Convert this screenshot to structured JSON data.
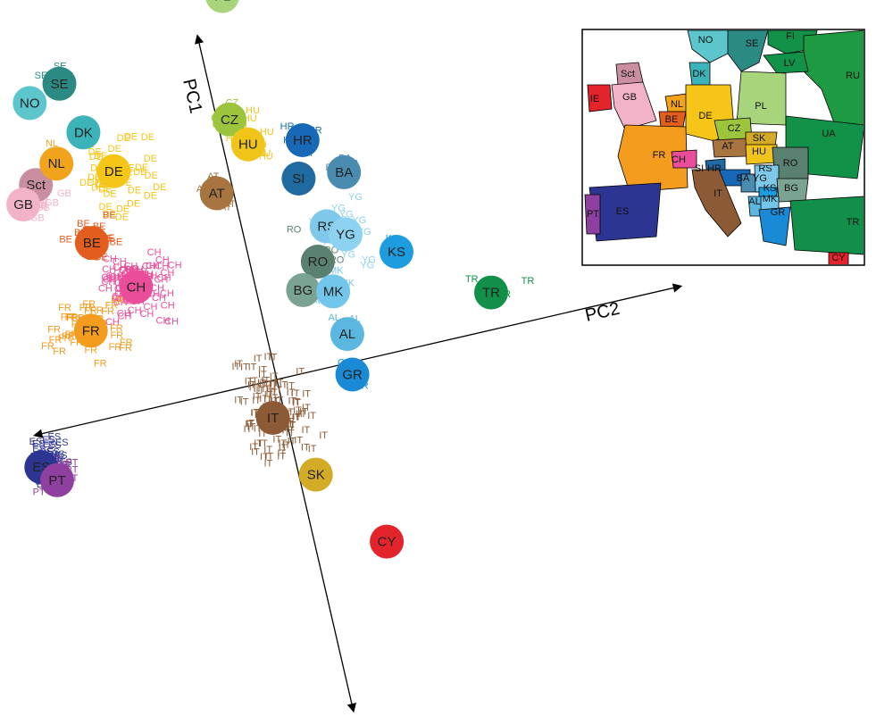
{
  "chart_data": {
    "type": "scatter",
    "axes": {
      "pc1_label": "PC1",
      "pc2_label": "PC2"
    },
    "population_centers": [
      {
        "code": "IE",
        "pc2": -0.62,
        "pc1": 0.62,
        "color": "#e3242b"
      },
      {
        "code": "Sct",
        "pc2": -0.46,
        "pc1": 0.6,
        "color": "#c98ea0"
      },
      {
        "code": "GB",
        "pc2": -0.5,
        "pc1": 0.56,
        "color": "#f2b3c8"
      },
      {
        "code": "NL",
        "pc2": -0.4,
        "pc1": 0.64,
        "color": "#f2a31c"
      },
      {
        "code": "NO",
        "pc2": -0.43,
        "pc1": 0.8,
        "color": "#5cc6cc"
      },
      {
        "code": "SE",
        "pc2": -0.35,
        "pc1": 0.83,
        "color": "#2b8a84"
      },
      {
        "code": "DK",
        "pc2": -0.32,
        "pc1": 0.7,
        "color": "#3bb3b8"
      },
      {
        "code": "DE",
        "pc2": -0.27,
        "pc1": 0.59,
        "color": "#f5c518"
      },
      {
        "code": "BE",
        "pc2": -0.36,
        "pc1": 0.43,
        "color": "#e35e1e"
      },
      {
        "code": "CH",
        "pc2": -0.28,
        "pc1": 0.3,
        "color": "#ea4d9a"
      },
      {
        "code": "FR",
        "pc2": -0.41,
        "pc1": 0.22,
        "color": "#f39c1e"
      },
      {
        "code": "AT",
        "pc2": -0.04,
        "pc1": 0.48,
        "color": "#a8743f"
      },
      {
        "code": "CZ",
        "pc2": 0.03,
        "pc1": 0.65,
        "color": "#9cc43c"
      },
      {
        "code": "HU",
        "pc2": 0.06,
        "pc1": 0.58,
        "color": "#f0c419"
      },
      {
        "code": "PL",
        "pc2": 0.08,
        "pc1": 0.95,
        "color": "#a8d47c"
      },
      {
        "code": "RU",
        "pc2": 0.14,
        "pc1": 0.98,
        "color": "#1e9a43"
      },
      {
        "code": "FI",
        "pc2": -0.11,
        "pc1": 1.04,
        "color": "#129148"
      },
      {
        "code": "LV",
        "pc2": 0.18,
        "pc1": 1.23,
        "color": "#129148"
      },
      {
        "code": "UA",
        "pc2": 0.32,
        "pc1": 0.96,
        "color": "#129148"
      },
      {
        "code": "HR",
        "pc2": 0.19,
        "pc1": 0.56,
        "color": "#1769b8"
      },
      {
        "code": "SI",
        "pc2": 0.16,
        "pc1": 0.47,
        "color": "#1f6aa0"
      },
      {
        "code": "BA",
        "pc2": 0.27,
        "pc1": 0.46,
        "color": "#4a8bb0"
      },
      {
        "code": "RS",
        "pc2": 0.2,
        "pc1": 0.34,
        "color": "#7ec8ea"
      },
      {
        "code": "YG",
        "pc2": 0.24,
        "pc1": 0.31,
        "color": "#8dd2f0"
      },
      {
        "code": "RO",
        "pc2": 0.16,
        "pc1": 0.26,
        "color": "#5a8070"
      },
      {
        "code": "BG",
        "pc2": 0.11,
        "pc1": 0.2,
        "color": "#7aa392"
      },
      {
        "code": "MK",
        "pc2": 0.18,
        "pc1": 0.18,
        "color": "#72c5eb"
      },
      {
        "code": "KS",
        "pc2": 0.35,
        "pc1": 0.24,
        "color": "#1e9ce0"
      },
      {
        "code": "AL",
        "pc2": 0.19,
        "pc1": 0.07,
        "color": "#5bb6e0"
      },
      {
        "code": "GR",
        "pc2": 0.18,
        "pc1": -0.03,
        "color": "#1a8ad6"
      },
      {
        "code": "IT",
        "pc2": -0.03,
        "pc1": -0.09,
        "color": "#8c5a35"
      },
      {
        "code": "SK",
        "pc2": 0.04,
        "pc1": -0.25,
        "color": "#d3ab26"
      },
      {
        "code": "TR",
        "pc2": 0.55,
        "pc1": 0.09,
        "color": "#12904a"
      },
      {
        "code": "CY",
        "pc2": 0.17,
        "pc1": -0.45,
        "color": "#e3242b"
      },
      {
        "code": "ES",
        "pc2": -0.6,
        "pc1": -0.08,
        "color": "#2d3592"
      },
      {
        "code": "PT",
        "pc2": -0.57,
        "pc1": -0.12,
        "color": "#8f3f9f"
      }
    ],
    "individual_labels": [
      {
        "code": "IE",
        "color": "#e3242b",
        "n": 60,
        "spread": [
          0.06,
          0.05
        ]
      },
      {
        "code": "GB",
        "color": "#f2b3c8",
        "n": 40,
        "spread": [
          0.07,
          0.05
        ]
      },
      {
        "code": "NL",
        "color": "#f2a31c",
        "n": 6,
        "spread": [
          0.03,
          0.04
        ]
      },
      {
        "code": "DE",
        "color": "#f5c518",
        "n": 40,
        "spread": [
          0.08,
          0.08
        ]
      },
      {
        "code": "BE",
        "color": "#e35e1e",
        "n": 25,
        "spread": [
          0.05,
          0.05
        ]
      },
      {
        "code": "CH",
        "color": "#ea4d9a",
        "n": 70,
        "spread": [
          0.08,
          0.08
        ]
      },
      {
        "code": "FR",
        "color": "#f39c1e",
        "n": 45,
        "spread": [
          0.08,
          0.08
        ]
      },
      {
        "code": "AT",
        "color": "#a8743f",
        "n": 8,
        "spread": [
          0.04,
          0.04
        ]
      },
      {
        "code": "CZ",
        "color": "#9cc43c",
        "n": 6,
        "spread": [
          0.03,
          0.03
        ]
      },
      {
        "code": "HU",
        "color": "#f0c419",
        "n": 12,
        "spread": [
          0.05,
          0.06
        ]
      },
      {
        "code": "PL",
        "color": "#a8d47c",
        "n": 10,
        "spread": [
          0.05,
          0.05
        ]
      },
      {
        "code": "RU",
        "color": "#1e9a43",
        "n": 4,
        "spread": [
          0.03,
          0.03
        ]
      },
      {
        "code": "SE",
        "color": "#2b8a84",
        "n": 6,
        "spread": [
          0.04,
          0.03
        ]
      },
      {
        "code": "NO",
        "color": "#5cc6cc",
        "n": 3,
        "spread": [
          0.03,
          0.03
        ]
      },
      {
        "code": "HR",
        "color": "#1769b8",
        "n": 6,
        "spread": [
          0.05,
          0.05
        ]
      },
      {
        "code": "BA",
        "color": "#4a8bb0",
        "n": 4,
        "spread": [
          0.03,
          0.03
        ]
      },
      {
        "code": "YG",
        "color": "#8dd2f0",
        "n": 18,
        "spread": [
          0.05,
          0.07
        ]
      },
      {
        "code": "RO",
        "color": "#5a8070",
        "n": 8,
        "spread": [
          0.05,
          0.06
        ]
      },
      {
        "code": "MK",
        "color": "#72c5eb",
        "n": 10,
        "spread": [
          0.04,
          0.05
        ]
      },
      {
        "code": "AL",
        "color": "#5bb6e0",
        "n": 6,
        "spread": [
          0.03,
          0.04
        ]
      },
      {
        "code": "GR",
        "color": "#1a8ad6",
        "n": 5,
        "spread": [
          0.03,
          0.04
        ]
      },
      {
        "code": "IT",
        "color": "#8c5a35",
        "n": 110,
        "spread": [
          0.08,
          0.12
        ]
      },
      {
        "code": "TR",
        "color": "#12904a",
        "n": 5,
        "spread": [
          0.09,
          0.05
        ]
      },
      {
        "code": "CY",
        "color": "#e3242b",
        "n": 2,
        "spread": [
          0.02,
          0.02
        ]
      },
      {
        "code": "ES",
        "color": "#2d3592",
        "n": 70,
        "spread": [
          0.06,
          0.05
        ]
      },
      {
        "code": "PT",
        "color": "#8f3f9f",
        "n": 30,
        "spread": [
          0.04,
          0.04
        ]
      },
      {
        "code": "KS",
        "color": "#1e9ce0",
        "n": 1,
        "spread": [
          0.02,
          0.02
        ]
      }
    ],
    "grid": false,
    "legend": "inset map top-right"
  },
  "inset_map": {
    "labels": [
      "NO",
      "SE",
      "FI",
      "LV",
      "RU",
      "DK",
      "Sct",
      "GB",
      "IE",
      "NL",
      "BE",
      "DE",
      "PL",
      "CZ",
      "SK",
      "UA",
      "FR",
      "CH",
      "AT",
      "HU",
      "RO",
      "SI",
      "HR",
      "RS",
      "BA",
      "YG",
      "KS",
      "BG",
      "MK",
      "AL",
      "GR",
      "IT",
      "ES",
      "PT",
      "TR",
      "CY"
    ],
    "colors": {
      "sea": "#ffffff",
      "land_other": "#ffffff"
    }
  }
}
